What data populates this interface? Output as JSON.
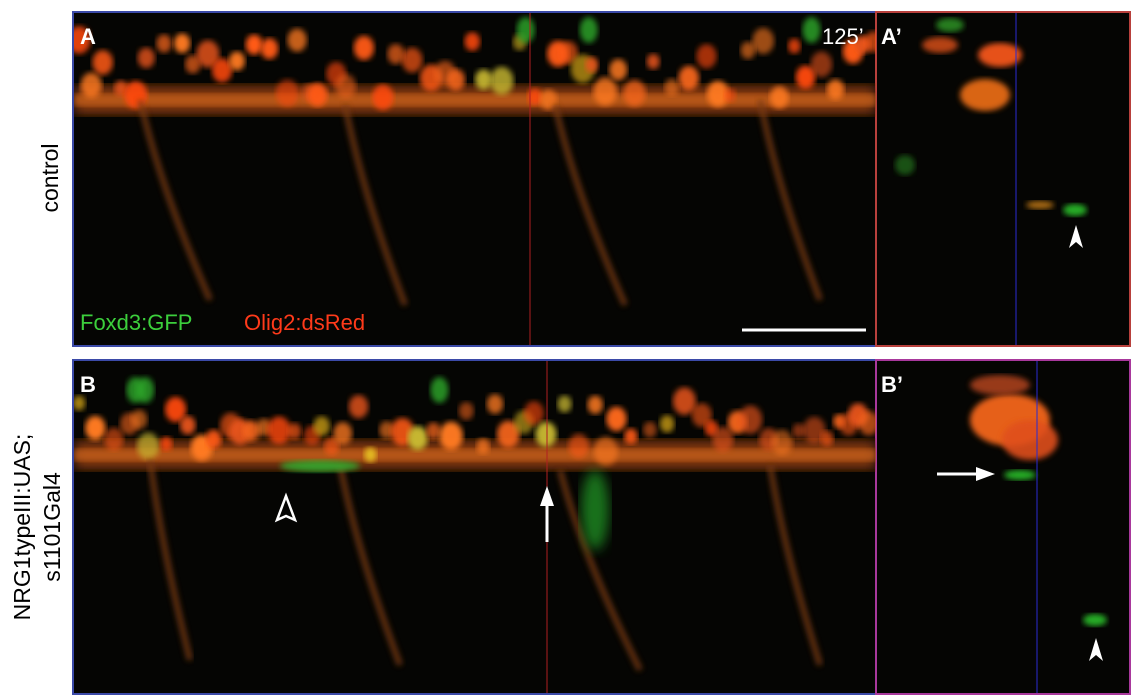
{
  "panels": [
    {
      "label": "A",
      "time": "125’",
      "legend": [
        "Foxd3:GFP",
        "Olig2:dsRed"
      ]
    },
    {
      "label": "A’"
    },
    {
      "label": "B"
    },
    {
      "label": "B’"
    }
  ],
  "rows": [
    {
      "label": [
        "control"
      ]
    },
    {
      "label": [
        "NRG1typeIII:UAS;",
        "s1101Gal4"
      ]
    }
  ]
}
